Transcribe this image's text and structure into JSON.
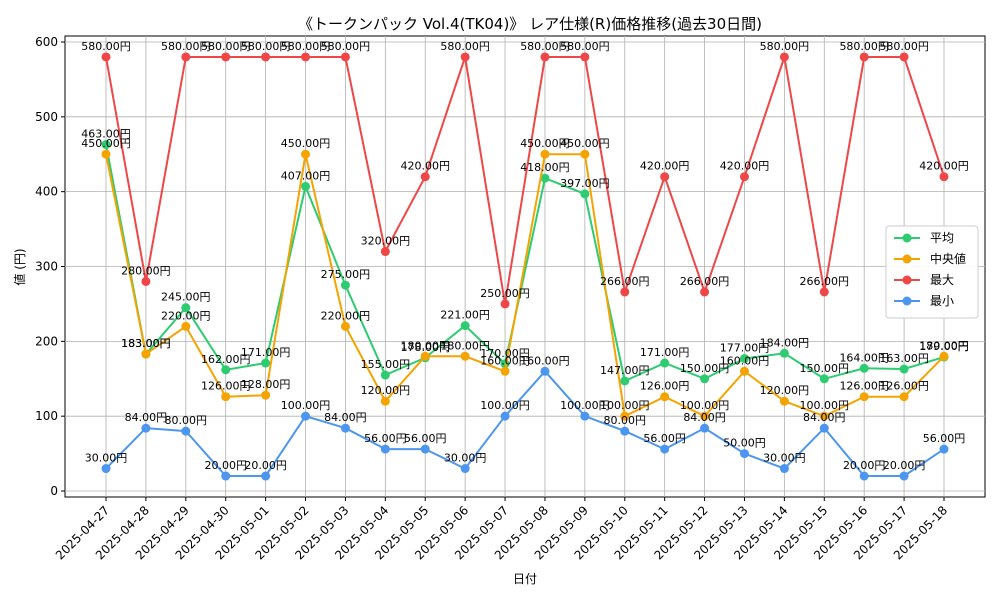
{
  "chart_data": {
    "type": "line",
    "title": "《トークンパック Vol.4(TK04)》 レア仕様(R)価格推移(過去30日間)",
    "xlabel": "日付",
    "ylabel": "値 (円)",
    "ylim": [
      -8,
      608
    ],
    "yticks": [
      0,
      100,
      200,
      300,
      400,
      500,
      600
    ],
    "grid": true,
    "legend_position": "right",
    "value_suffix": "円",
    "categories": [
      "2025-04-27",
      "2025-04-28",
      "2025-04-29",
      "2025-04-30",
      "2025-05-01",
      "2025-05-02",
      "2025-05-03",
      "2025-05-04",
      "2025-05-05",
      "2025-05-06",
      "2025-05-07",
      "2025-05-08",
      "2025-05-09",
      "2025-05-10",
      "2025-05-11",
      "2025-05-12",
      "2025-05-13",
      "2025-05-14",
      "2025-05-15",
      "2025-05-16",
      "2025-05-17",
      "2025-05-18"
    ],
    "series": [
      {
        "name": "平均",
        "color": "#2ecc71",
        "values": [
          463,
          183,
          245,
          162,
          171,
          407,
          275,
          155,
          178,
          221,
          170,
          418,
          397,
          147,
          171,
          150,
          177,
          184,
          150,
          164,
          163,
          179
        ]
      },
      {
        "name": "中央値",
        "color": "#f5a300",
        "values": [
          450,
          183,
          220,
          126,
          128,
          450,
          220,
          120,
          180,
          180,
          160,
          450,
          450,
          100,
          126,
          100,
          160,
          120,
          100,
          126,
          126,
          180
        ]
      },
      {
        "name": "最大",
        "color": "#ef4747",
        "values": [
          580,
          280,
          580,
          580,
          580,
          580,
          580,
          320,
          420,
          580,
          250,
          580,
          580,
          266,
          420,
          266,
          420,
          580,
          266,
          580,
          580,
          420
        ]
      },
      {
        "name": "最小",
        "color": "#4d96f0",
        "values": [
          30,
          84,
          80,
          20,
          20,
          100,
          84,
          56,
          56,
          30,
          100,
          160,
          100,
          80,
          56,
          84,
          50,
          30,
          84,
          20,
          20,
          56
        ]
      }
    ]
  }
}
